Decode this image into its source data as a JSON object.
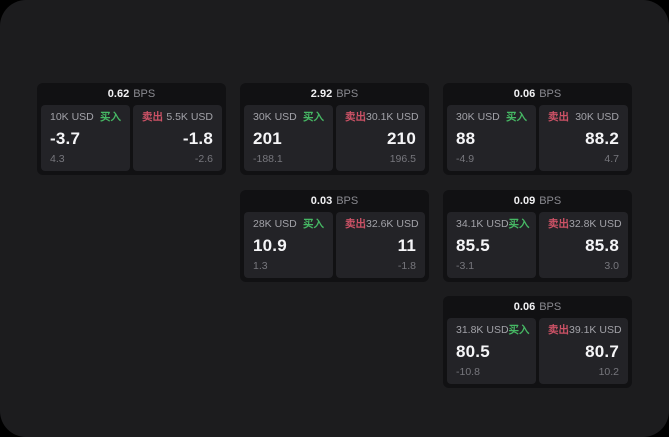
{
  "board": {
    "bps_unit": "BPS",
    "buy_label": "买入",
    "sell_label": "卖出"
  },
  "theme": {
    "surface_bg": "#1c1c1e",
    "card_bg": "#111113",
    "panel_bg": "#232327",
    "buy_color": "#46b864",
    "sell_color": "#cc5266"
  },
  "cards": [
    {
      "bps": "0.62",
      "col": 0,
      "row": 0,
      "buy": {
        "amount": "10K USD",
        "price": "-3.7",
        "change": "4.3"
      },
      "sell": {
        "amount": "5.5K USD",
        "price": "-1.8",
        "change": "-2.6"
      }
    },
    {
      "bps": "2.92",
      "col": 1,
      "row": 0,
      "buy": {
        "amount": "30K USD",
        "price": "201",
        "change": "-188.1"
      },
      "sell": {
        "amount": "30.1K USD",
        "price": "210",
        "change": "196.5"
      }
    },
    {
      "bps": "0.06",
      "col": 2,
      "row": 0,
      "buy": {
        "amount": "30K USD",
        "price": "88",
        "change": "-4.9"
      },
      "sell": {
        "amount": "30K USD",
        "price": "88.2",
        "change": "4.7"
      }
    },
    {
      "bps": "0.03",
      "col": 1,
      "row": 1,
      "buy": {
        "amount": "28K USD",
        "price": "10.9",
        "change": "1.3"
      },
      "sell": {
        "amount": "32.6K USD",
        "price": "11",
        "change": "-1.8"
      }
    },
    {
      "bps": "0.09",
      "col": 2,
      "row": 1,
      "buy": {
        "amount": "34.1K USD",
        "price": "85.5",
        "change": "-3.1"
      },
      "sell": {
        "amount": "32.8K USD",
        "price": "85.8",
        "change": "3.0"
      }
    },
    {
      "bps": "0.06",
      "col": 2,
      "row": 2,
      "buy": {
        "amount": "31.8K USD",
        "price": "80.5",
        "change": "-10.8"
      },
      "sell": {
        "amount": "39.1K USD",
        "price": "80.7",
        "change": "10.2"
      }
    }
  ]
}
